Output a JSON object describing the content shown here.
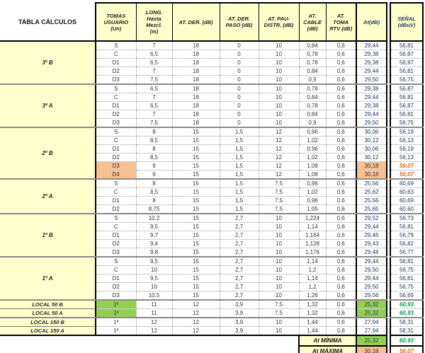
{
  "title": "TABLA CÁLCULOS",
  "columns": [
    "TOMAS\nUSUARIO\n(Un)",
    "LONG.\nHasta\nMezcl.\n(m)",
    "AT. DER. (dB)",
    "AT. DER.\nPASO (dB)",
    "AT. PAU-\nDISTR. (dB)",
    "AT.\nCABLE\n(dB)",
    "AT.\nTOMA\nRTV (dB)",
    "At(dB)",
    "SEÑAL\n(dBuV)"
  ],
  "groups": [
    {
      "label": "3º B",
      "rows": [
        {
          "toma": "S",
          "long": "7",
          "der": "18",
          "paso": "0",
          "pau": "10",
          "cable": "0,84",
          "rtv": "0,6",
          "at": "29,44",
          "senal": "56,81"
        },
        {
          "toma": "C",
          "long": "6,5",
          "der": "18",
          "paso": "0",
          "pau": "10",
          "cable": "0,78",
          "rtv": "0,6",
          "at": "29,38",
          "senal": "56,87"
        },
        {
          "toma": "D1",
          "long": "6,5",
          "der": "18",
          "paso": "0",
          "pau": "10",
          "cable": "0,78",
          "rtv": "0,6",
          "at": "29,38",
          "senal": "56,87"
        },
        {
          "toma": "D2",
          "long": "7",
          "der": "18",
          "paso": "0",
          "pau": "10",
          "cable": "0,84",
          "rtv": "0,6",
          "at": "29,44",
          "senal": "56,81"
        },
        {
          "toma": "D3",
          "long": "7,5",
          "der": "18",
          "paso": "0",
          "pau": "10",
          "cable": "0,9",
          "rtv": "0,6",
          "at": "29,50",
          "senal": "56,75"
        }
      ]
    },
    {
      "label": "3º A",
      "rows": [
        {
          "toma": "S",
          "long": "6,5",
          "der": "18",
          "paso": "0",
          "pau": "10",
          "cable": "0,78",
          "rtv": "0,6",
          "at": "29,38",
          "senal": "56,87"
        },
        {
          "toma": "C",
          "long": "7",
          "der": "18",
          "paso": "0",
          "pau": "10",
          "cable": "0,84",
          "rtv": "0,6",
          "at": "29,44",
          "senal": "56,81"
        },
        {
          "toma": "D1",
          "long": "6,5",
          "der": "18",
          "paso": "0",
          "pau": "10",
          "cable": "0,78",
          "rtv": "0,6",
          "at": "29,38",
          "senal": "56,87"
        },
        {
          "toma": "D2",
          "long": "7",
          "der": "18",
          "paso": "0",
          "pau": "10",
          "cable": "0,84",
          "rtv": "0,6",
          "at": "29,44",
          "senal": "56,81"
        },
        {
          "toma": "D3",
          "long": "7,5",
          "der": "18",
          "paso": "0",
          "pau": "10",
          "cable": "0,9",
          "rtv": "0,6",
          "at": "29,50",
          "senal": "56,75"
        }
      ]
    },
    {
      "label": "2º B",
      "rows": [
        {
          "toma": "S",
          "long": "8",
          "der": "15",
          "paso": "1,5",
          "pau": "12",
          "cable": "0,96",
          "rtv": "0,6",
          "at": "30,06",
          "senal": "56,19"
        },
        {
          "toma": "C",
          "long": "8,5",
          "der": "15",
          "paso": "1,5",
          "pau": "12",
          "cable": "1,02",
          "rtv": "0,6",
          "at": "30,12",
          "senal": "56,13"
        },
        {
          "toma": "D1",
          "long": "8",
          "der": "15",
          "paso": "1,5",
          "pau": "12",
          "cable": "0,96",
          "rtv": "0,6",
          "at": "30,06",
          "senal": "56,19"
        },
        {
          "toma": "D2",
          "long": "8,5",
          "der": "15",
          "paso": "1,5",
          "pau": "12",
          "cable": "1,02",
          "rtv": "0,6",
          "at": "30,12",
          "senal": "56,13"
        },
        {
          "toma": "D3",
          "long": "9",
          "der": "15",
          "paso": "1,5",
          "pau": "12",
          "cable": "1,08",
          "rtv": "0,6",
          "at": "30,18",
          "senal": "56,07",
          "hl": "max"
        },
        {
          "toma": "D4",
          "long": "9",
          "der": "15",
          "paso": "1,5",
          "pau": "12",
          "cable": "1,08",
          "rtv": "0,6",
          "at": "30,18",
          "senal": "56,07",
          "hl": "max"
        }
      ]
    },
    {
      "label": "2º A",
      "rows": [
        {
          "toma": "S",
          "long": "8",
          "der": "15",
          "paso": "1,5",
          "pau": "7,5",
          "cable": "0,96",
          "rtv": "0,6",
          "at": "25,56",
          "senal": "60,69"
        },
        {
          "toma": "C",
          "long": "8,5",
          "der": "15",
          "paso": "1,5",
          "pau": "7,5",
          "cable": "1,02",
          "rtv": "0,6",
          "at": "25,62",
          "senal": "60,63"
        },
        {
          "toma": "D1",
          "long": "8",
          "der": "15",
          "paso": "1,5",
          "pau": "7,5",
          "cable": "0,96",
          "rtv": "0,6",
          "at": "25,56",
          "senal": "60,69"
        },
        {
          "toma": "D2",
          "long": "8,75",
          "der": "15",
          "paso": "1,5",
          "pau": "7,5",
          "cable": "1,05",
          "rtv": "0,6",
          "at": "25,65",
          "senal": "60,60"
        }
      ]
    },
    {
      "label": "1º B",
      "rows": [
        {
          "toma": "S",
          "long": "10,2",
          "der": "15",
          "paso": "2,7",
          "pau": "10",
          "cable": "1,224",
          "rtv": "0,6",
          "at": "29,52",
          "senal": "56,73"
        },
        {
          "toma": "C",
          "long": "9,5",
          "der": "15",
          "paso": "2,7",
          "pau": "10",
          "cable": "1,14",
          "rtv": "0,6",
          "at": "29,44",
          "senal": "56,81"
        },
        {
          "toma": "D1",
          "long": "9,7",
          "der": "15",
          "paso": "2,7",
          "pau": "10",
          "cable": "1,164",
          "rtv": "0,6",
          "at": "29,46",
          "senal": "56,79"
        },
        {
          "toma": "D2",
          "long": "9,4",
          "der": "15",
          "paso": "2,7",
          "pau": "10",
          "cable": "1,128",
          "rtv": "0,6",
          "at": "29,43",
          "senal": "56,82"
        },
        {
          "toma": "D3",
          "long": "9,8",
          "der": "15",
          "paso": "2,7",
          "pau": "10",
          "cable": "1,176",
          "rtv": "0,6",
          "at": "29,48",
          "senal": "56,77"
        }
      ]
    },
    {
      "label": "1º A",
      "rows": [
        {
          "toma": "S",
          "long": "9,5",
          "der": "15",
          "paso": "2,7",
          "pau": "10",
          "cable": "1,14",
          "rtv": "0,6",
          "at": "29,44",
          "senal": "56,81"
        },
        {
          "toma": "C",
          "long": "10",
          "der": "15",
          "paso": "2,7",
          "pau": "10",
          "cable": "1,2",
          "rtv": "0,6",
          "at": "29,50",
          "senal": "56,75"
        },
        {
          "toma": "D1",
          "long": "9,5",
          "der": "15",
          "paso": "2,7",
          "pau": "10",
          "cable": "1,14",
          "rtv": "0,6",
          "at": "29,44",
          "senal": "56,81"
        },
        {
          "toma": "D2",
          "long": "10",
          "der": "15",
          "paso": "2,7",
          "pau": "10",
          "cable": "1,2",
          "rtv": "0,6",
          "at": "29,50",
          "senal": "56,75"
        },
        {
          "toma": "D3",
          "long": "10,5",
          "der": "15",
          "paso": "2,7",
          "pau": "10",
          "cable": "1,26",
          "rtv": "0,6",
          "at": "29,56",
          "senal": "56,69"
        }
      ]
    },
    {
      "rows": [
        {
          "label": "LOCAL 50 B",
          "toma": "1ª",
          "long": "11",
          "der": "12",
          "paso": "3,9",
          "pau": "7,5",
          "cable": "1,32",
          "rtv": "0,6",
          "at": "25,32",
          "senal": "60,93",
          "hl": "min"
        },
        {
          "label": "LOCAL 50 A",
          "toma": "1ª",
          "long": "11",
          "der": "12",
          "paso": "3,9",
          "pau": "7,5",
          "cable": "1,32",
          "rtv": "0,6",
          "at": "25,32",
          "senal": "60,93",
          "hl": "min"
        }
      ]
    },
    {
      "rows": [
        {
          "label": "LOCAL 150 B",
          "toma": "1ª",
          "long": "12",
          "der": "12",
          "paso": "3,9",
          "pau": "10",
          "cable": "1,44",
          "rtv": "0,6",
          "at": "27,94",
          "senal": "58,31"
        },
        {
          "label": "LOCAL 150 A",
          "toma": "1ª",
          "long": "12",
          "der": "12",
          "paso": "3,9",
          "pau": "10",
          "cable": "1,44",
          "rtv": "0,6",
          "at": "27,94",
          "senal": "58,31"
        }
      ]
    }
  ],
  "summary": [
    {
      "label": "At MÍNIMA",
      "at": "25,32",
      "senal": "60,93"
    },
    {
      "label": "At MÁXIMA",
      "at": "30,18",
      "senal": "56,07"
    }
  ],
  "colors": {
    "header_bg": "#FFFFCC",
    "highlight_max_bg": "#FAC090",
    "highlight_max_text": "#E36C0A",
    "highlight_min_bg": "#92D050",
    "highlight_min_text": "#00A050",
    "value_text": "#1F3864"
  }
}
